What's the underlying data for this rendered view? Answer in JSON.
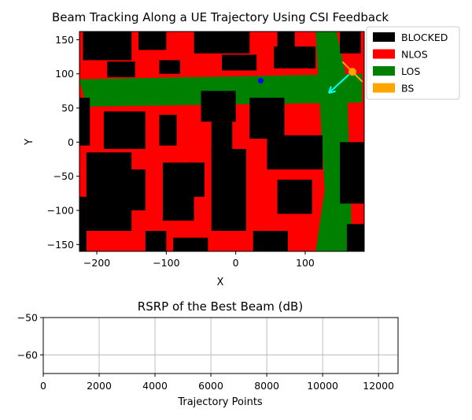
{
  "chart_data": [
    {
      "type": "heatmap",
      "title": "Beam Tracking Along a UE Trajectory Using CSI Feedback",
      "xlabel": "X",
      "ylabel": "Y",
      "xlim": [
        -225,
        185
      ],
      "ylim": [
        -160,
        162
      ],
      "xticks": [
        -200,
        -100,
        0,
        100
      ],
      "yticks": [
        -150,
        -100,
        -50,
        0,
        50,
        100,
        150
      ],
      "xtick_labels": [
        "−200",
        "−100",
        "0",
        "100"
      ],
      "ytick_labels": [
        "−150",
        "−100",
        "−50",
        "0",
        "50",
        "100",
        "150"
      ],
      "legend_position": "outside top-right",
      "legend": [
        {
          "label": "BLOCKED",
          "color": "#000000"
        },
        {
          "label": "NLOS",
          "color": "#ff0000"
        },
        {
          "label": "LOS",
          "color": "#008000"
        },
        {
          "label": "BS",
          "color": "#ffa500"
        }
      ],
      "base_color": "#ff0000",
      "los_regions": [
        {
          "points": [
            [
              -225,
              92
            ],
            [
              182,
              100
            ],
            [
              182,
              58
            ],
            [
              -215,
              52
            ]
          ]
        },
        {
          "points": [
            [
              115,
              162
            ],
            [
              145,
              162
            ],
            [
              160,
              90
            ],
            [
              168,
              -160
            ],
            [
              115,
              -160
            ],
            [
              128,
              -70
            ]
          ]
        }
      ],
      "blocked_regions": [
        {
          "x": [
            -220,
            -150
          ],
          "y": [
            120,
            162
          ]
        },
        {
          "x": [
            -140,
            -100
          ],
          "y": [
            135,
            162
          ]
        },
        {
          "x": [
            -185,
            -145
          ],
          "y": [
            95,
            118
          ]
        },
        {
          "x": [
            -110,
            -80
          ],
          "y": [
            100,
            120
          ]
        },
        {
          "x": [
            -60,
            20
          ],
          "y": [
            130,
            162
          ]
        },
        {
          "x": [
            -20,
            30
          ],
          "y": [
            105,
            128
          ]
        },
        {
          "x": [
            55,
            115
          ],
          "y": [
            108,
            140
          ]
        },
        {
          "x": [
            60,
            85
          ],
          "y": [
            140,
            162
          ]
        },
        {
          "x": [
            150,
            180
          ],
          "y": [
            130,
            162
          ]
        },
        {
          "x": [
            -225,
            -210
          ],
          "y": [
            -5,
            65
          ]
        },
        {
          "x": [
            -190,
            -130
          ],
          "y": [
            -10,
            45
          ]
        },
        {
          "x": [
            -110,
            -85
          ],
          "y": [
            -5,
            40
          ]
        },
        {
          "x": [
            -50,
            0
          ],
          "y": [
            30,
            75
          ]
        },
        {
          "x": [
            -35,
            -5
          ],
          "y": [
            -20,
            30
          ]
        },
        {
          "x": [
            -215,
            -150
          ],
          "y": [
            -130,
            -15
          ]
        },
        {
          "x": [
            -160,
            -130
          ],
          "y": [
            -100,
            -40
          ]
        },
        {
          "x": [
            -105,
            -60
          ],
          "y": [
            -115,
            -30
          ]
        },
        {
          "x": [
            -70,
            -45
          ],
          "y": [
            -80,
            -30
          ]
        },
        {
          "x": [
            -35,
            15
          ],
          "y": [
            -130,
            -10
          ]
        },
        {
          "x": [
            20,
            70
          ],
          "y": [
            5,
            65
          ]
        },
        {
          "x": [
            45,
            125
          ],
          "y": [
            -40,
            10
          ]
        },
        {
          "x": [
            60,
            110
          ],
          "y": [
            -105,
            -55
          ]
        },
        {
          "x": [
            150,
            185
          ],
          "y": [
            -90,
            0
          ]
        },
        {
          "x": [
            -225,
            -215
          ],
          "y": [
            -160,
            -80
          ]
        },
        {
          "x": [
            -130,
            -100
          ],
          "y": [
            -160,
            -130
          ]
        },
        {
          "x": [
            -90,
            -40
          ],
          "y": [
            -160,
            -140
          ]
        },
        {
          "x": [
            25,
            75
          ],
          "y": [
            -160,
            -130
          ]
        },
        {
          "x": [
            160,
            185
          ],
          "y": [
            -160,
            -120
          ]
        }
      ],
      "base_station": {
        "x": 168,
        "y": 103,
        "color": "#ffa500",
        "orientation_deg": -45
      },
      "ue_position": {
        "x": 36,
        "y": 90,
        "color": "#0000ff"
      },
      "beam_arrow": {
        "from": [
          163,
          99
        ],
        "to": [
          134,
          72
        ],
        "color": "#00ffff"
      }
    },
    {
      "type": "line",
      "title": "RSRP of the Best Beam (dB)",
      "xlabel": "Trajectory Points",
      "ylabel": "",
      "xlim": [
        0,
        12700
      ],
      "ylim": [
        -65,
        -50
      ],
      "xticks": [
        0,
        2000,
        4000,
        6000,
        8000,
        10000,
        12000
      ],
      "yticks": [
        -60,
        -50
      ],
      "xtick_labels": [
        "0",
        "2000",
        "4000",
        "6000",
        "8000",
        "10000",
        "12000"
      ],
      "ytick_labels": [
        "−60",
        "−50"
      ],
      "grid": true,
      "series": [
        {
          "x": [],
          "y": []
        }
      ]
    }
  ]
}
